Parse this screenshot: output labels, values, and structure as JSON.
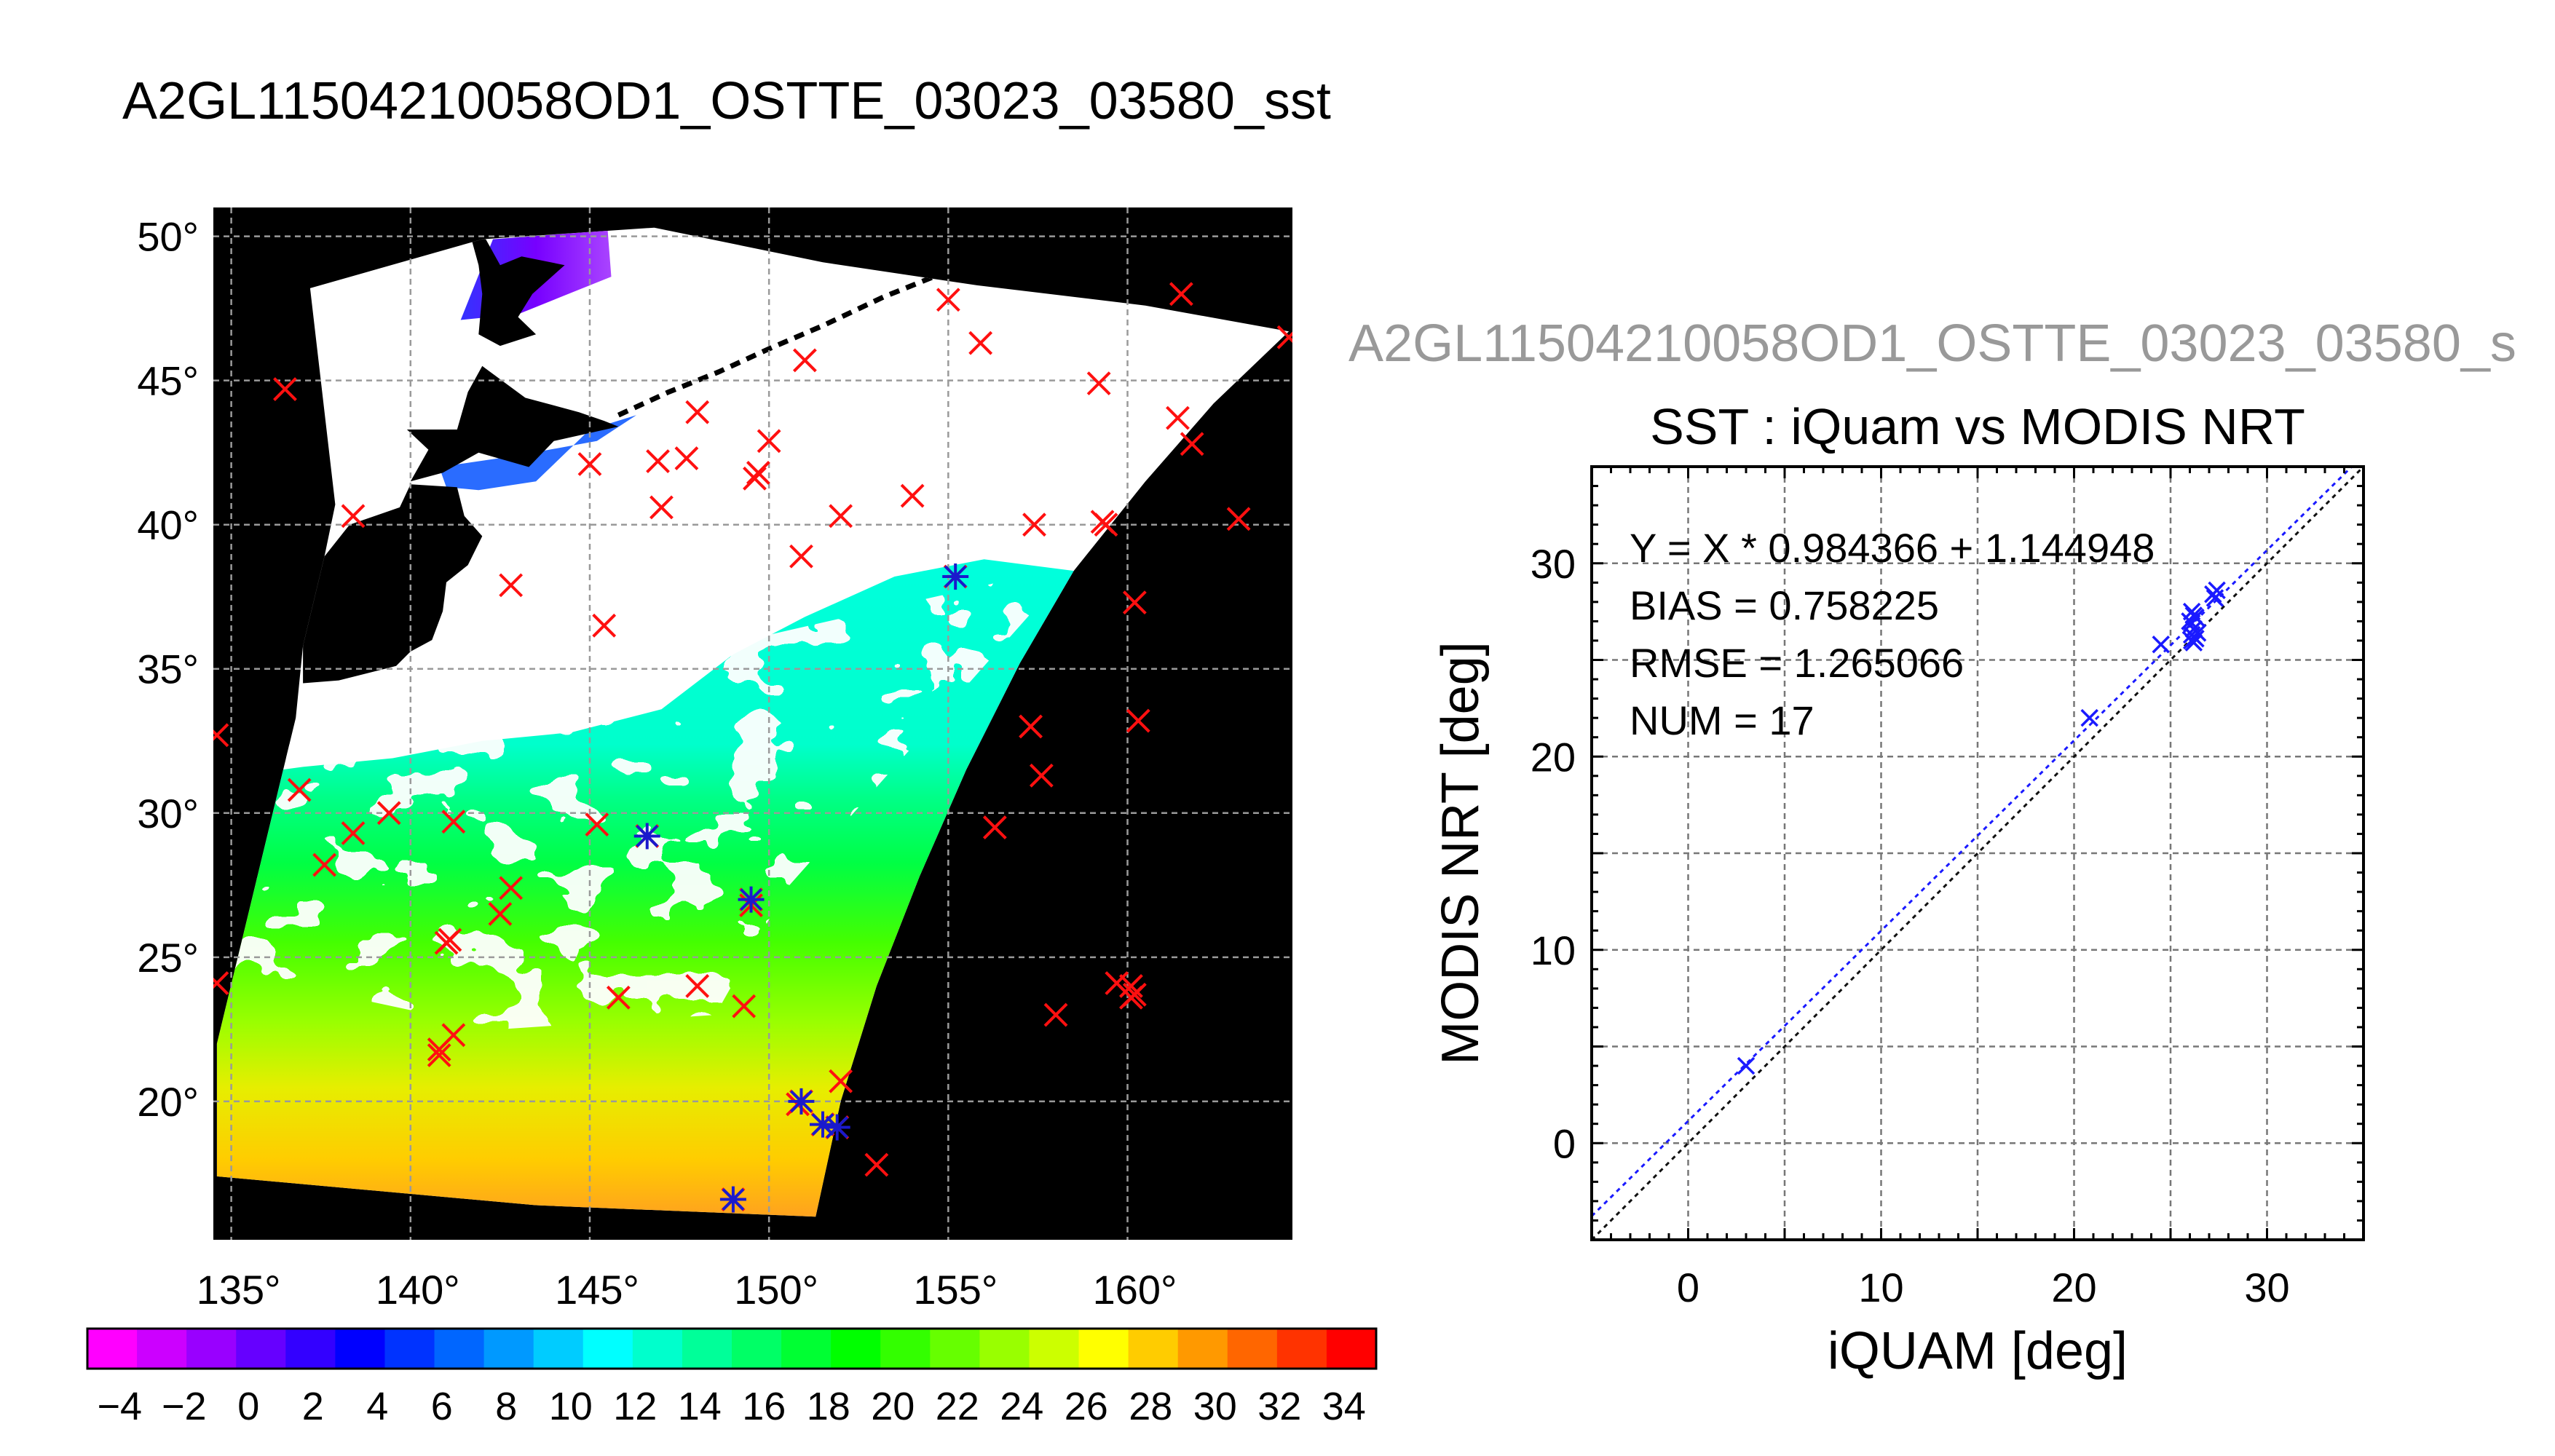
{
  "title": "A2GL11504210058OD1_OSTTE_03023_03580_sst",
  "right_title": "A2GL11504210058OD1_OSTTE_03023_03580_s",
  "colors": {
    "background": "#ffffff",
    "map_background": "#000000",
    "land": "#000000",
    "cloud": "#ffffff",
    "grid": "#9a9a9a",
    "marker_all": "#ff1010",
    "marker_match": "#1a1acc",
    "fit_line": "#1a1aff",
    "one_to_one_line": "#111111",
    "gray_title": "#999999"
  },
  "chart_data": [
    {
      "type": "map",
      "x_ticks": [
        "135°",
        "140°",
        "145°",
        "150°",
        "155°",
        "160°"
      ],
      "x_tick_values": [
        135,
        140,
        145,
        150,
        155,
        160
      ],
      "y_ticks": [
        "50°",
        "45°",
        "40°",
        "35°",
        "30°",
        "25°",
        "20°"
      ],
      "y_tick_values": [
        50,
        45,
        40,
        35,
        30,
        25,
        20
      ],
      "xlim": [
        134.5,
        164.6
      ],
      "ylim": [
        15.2,
        51.0
      ],
      "grid": true,
      "iquam_points_all": [
        [
          155.0,
          47.8
        ],
        [
          155.9,
          46.3
        ],
        [
          161.5,
          48.0
        ],
        [
          164.5,
          46.5
        ],
        [
          136.5,
          44.7
        ],
        [
          151.0,
          45.7
        ],
        [
          159.2,
          44.9
        ],
        [
          161.4,
          43.7
        ],
        [
          161.8,
          42.8
        ],
        [
          148.0,
          43.9
        ],
        [
          150.0,
          42.9
        ],
        [
          149.7,
          41.8
        ],
        [
          149.6,
          41.6
        ],
        [
          146.9,
          42.2
        ],
        [
          147.7,
          42.3
        ],
        [
          145.0,
          42.1
        ],
        [
          154.0,
          41.0
        ],
        [
          152.0,
          40.3
        ],
        [
          138.4,
          40.3
        ],
        [
          147.0,
          40.6
        ],
        [
          157.4,
          40.0
        ],
        [
          159.3,
          40.1
        ],
        [
          159.4,
          40.0
        ],
        [
          163.1,
          40.2
        ],
        [
          150.9,
          38.9
        ],
        [
          142.8,
          37.9
        ],
        [
          160.2,
          37.3
        ],
        [
          145.4,
          36.5
        ],
        [
          155.2,
          38.2
        ],
        [
          134.6,
          32.7
        ],
        [
          157.3,
          33.0
        ],
        [
          160.3,
          33.2
        ],
        [
          157.6,
          31.3
        ],
        [
          136.9,
          30.8
        ],
        [
          139.4,
          30.0
        ],
        [
          138.4,
          29.3
        ],
        [
          141.2,
          29.7
        ],
        [
          145.2,
          29.6
        ],
        [
          146.6,
          29.2
        ],
        [
          156.3,
          29.5
        ],
        [
          137.6,
          28.2
        ],
        [
          142.8,
          27.4
        ],
        [
          142.5,
          26.5
        ],
        [
          149.5,
          27.0
        ],
        [
          149.5,
          26.8
        ],
        [
          141.1,
          25.6
        ],
        [
          141.0,
          25.5
        ],
        [
          134.6,
          24.1
        ],
        [
          148.0,
          24.0
        ],
        [
          145.8,
          23.6
        ],
        [
          149.3,
          23.3
        ],
        [
          159.7,
          24.1
        ],
        [
          160.1,
          24.0
        ],
        [
          160.1,
          23.6
        ],
        [
          160.2,
          23.7
        ],
        [
          158.0,
          23.0
        ],
        [
          141.2,
          22.3
        ],
        [
          140.8,
          21.8
        ],
        [
          140.8,
          21.6
        ],
        [
          152.0,
          20.7
        ],
        [
          150.9,
          20.0
        ],
        [
          150.8,
          19.9
        ],
        [
          151.5,
          19.2
        ],
        [
          151.9,
          19.1
        ],
        [
          153.0,
          17.8
        ],
        [
          149.0,
          16.6
        ]
      ],
      "iquam_points_matched": [
        [
          146.6,
          29.2
        ],
        [
          149.5,
          27.0
        ],
        [
          150.9,
          20.0
        ],
        [
          151.5,
          19.2
        ],
        [
          151.9,
          19.1
        ],
        [
          149.0,
          16.6
        ],
        [
          155.2,
          38.2
        ]
      ],
      "colorbar": {
        "colors": [
          "#ff00ff",
          "#cc00ff",
          "#9900ff",
          "#6600ff",
          "#3300ff",
          "#0000ff",
          "#0033ff",
          "#0066ff",
          "#0099ff",
          "#00ccff",
          "#00ffff",
          "#00ffcc",
          "#00ff99",
          "#00ff66",
          "#00ff33",
          "#00ff00",
          "#33ff00",
          "#66ff00",
          "#99ff00",
          "#ccff00",
          "#ffff00",
          "#ffcc00",
          "#ff9900",
          "#ff6600",
          "#ff3300",
          "#ff0000"
        ],
        "range": [
          -5,
          35
        ],
        "labels": [
          "−4",
          "−2",
          "0",
          "2",
          "4",
          "6",
          "8",
          "10",
          "12",
          "14",
          "16",
          "18",
          "20",
          "22",
          "24",
          "26",
          "28",
          "30",
          "32",
          "34"
        ],
        "label_values": [
          -4,
          -2,
          0,
          2,
          4,
          6,
          8,
          10,
          12,
          14,
          16,
          18,
          20,
          22,
          24,
          26,
          28,
          30,
          32,
          34
        ]
      }
    },
    {
      "type": "scatter",
      "title": "SST : iQuam vs MODIS NRT",
      "xlabel": "iQUAM [deg]",
      "ylabel": "MODIS NRT [deg]",
      "xlim": [
        -5,
        35
      ],
      "ylim": [
        -5,
        35
      ],
      "x_ticks": [
        "0",
        "10",
        "20",
        "30"
      ],
      "x_tick_values": [
        0,
        10,
        20,
        30
      ],
      "y_ticks": [
        "0",
        "10",
        "20",
        "30"
      ],
      "y_tick_values": [
        0,
        10,
        20,
        30
      ],
      "grid": true,
      "stats": [
        "Y = X * 0.984366 + 1.144948",
        "BIAS = 0.758225",
        "RMSE = 1.265066",
        "NUM = 17"
      ],
      "fit": {
        "slope": 0.984366,
        "intercept": 1.144948
      },
      "points": [
        [
          3.0,
          4.0
        ],
        [
          20.8,
          22.0
        ],
        [
          24.5,
          25.8
        ],
        [
          26.1,
          27.5
        ],
        [
          26.2,
          27.3
        ],
        [
          26.1,
          26.9
        ],
        [
          26.2,
          26.6
        ],
        [
          26.1,
          26.3
        ],
        [
          26.3,
          26.1
        ],
        [
          26.2,
          25.9
        ],
        [
          26.0,
          27.0
        ],
        [
          26.4,
          26.4
        ],
        [
          26.3,
          27.2
        ],
        [
          27.3,
          28.2
        ],
        [
          27.4,
          28.6
        ],
        [
          27.2,
          28.4
        ],
        [
          26.1,
          26.0
        ]
      ]
    }
  ]
}
